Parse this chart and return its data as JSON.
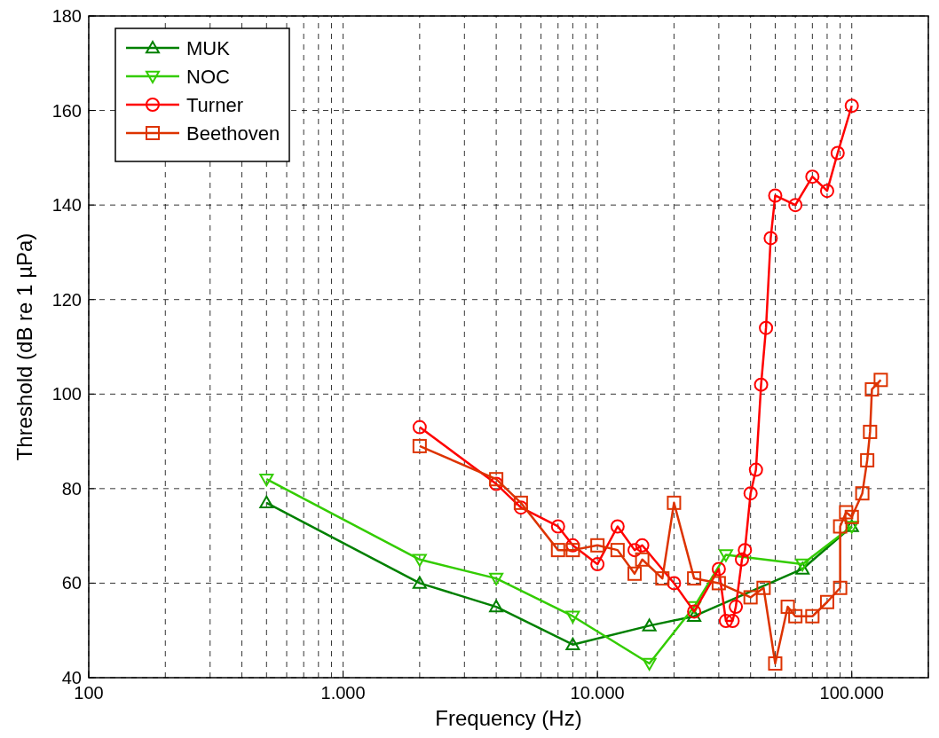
{
  "chart_data": {
    "type": "line",
    "xlabel": "Frequency (Hz)",
    "ylabel": "Threshold (dB re 1 µPa)",
    "log": "x",
    "grid": true,
    "legend": "top left",
    "line_style": "solid",
    "xlim": [
      100,
      200000
    ],
    "xticks": [
      {
        "value": 100,
        "label": "100"
      },
      {
        "value": 1000,
        "label": "1.000"
      },
      {
        "value": 10000,
        "label": "10.000"
      },
      {
        "value": 100000,
        "label": "100.000"
      }
    ],
    "ylim": [
      40,
      180
    ],
    "yticks": [
      40,
      60,
      80,
      100,
      120,
      140,
      160,
      180
    ],
    "series": [
      {
        "name": "MUK",
        "color": "#008000",
        "marker": "triangle",
        "x": [
          500,
          2000,
          4000,
          8000,
          16000,
          24000,
          64000,
          100000
        ],
        "values": [
          77,
          60,
          55,
          47,
          51,
          53,
          63,
          72
        ]
      },
      {
        "name": "NOC",
        "color": "#33cc00",
        "marker": "triangle-down",
        "x": [
          500,
          2000,
          4000,
          8000,
          16000,
          24000,
          32000,
          64000,
          100000
        ],
        "values": [
          82,
          65,
          61,
          53,
          43,
          55,
          66,
          64,
          72
        ]
      },
      {
        "name": "Turner",
        "color": "#ff0000",
        "marker": "circle",
        "x": [
          2000,
          4000,
          5000,
          7000,
          8000,
          10000,
          12000,
          14000,
          15000,
          20000,
          24000,
          30000,
          32000,
          34000,
          35000,
          37000,
          38000,
          40000,
          42000,
          44000,
          46000,
          48000,
          50000,
          60000,
          70000,
          80000,
          88000,
          100000
        ],
        "values": [
          93,
          81,
          76,
          72,
          68,
          64,
          72,
          67,
          68,
          60,
          54,
          63,
          52,
          52,
          55,
          65,
          67,
          79,
          84,
          102,
          114,
          133,
          142,
          140,
          146,
          143,
          151,
          161
        ]
      },
      {
        "name": "Beethoven",
        "color": "#dd3300",
        "marker": "square",
        "x": [
          2000,
          4000,
          5000,
          7000,
          8000,
          10000,
          12000,
          14000,
          15000,
          18000,
          20000,
          24000,
          30000,
          40000,
          45000,
          50000,
          56000,
          60000,
          70000,
          80000,
          90000,
          90000,
          95000,
          100000,
          110000,
          115000,
          118000,
          120000,
          130000
        ],
        "values": [
          89,
          82,
          77,
          67,
          67,
          68,
          67,
          62,
          65,
          61,
          77,
          61,
          60,
          57,
          59,
          43,
          55,
          53,
          53,
          56,
          59,
          72,
          75,
          74,
          79,
          86,
          92,
          101,
          103
        ]
      }
    ]
  }
}
